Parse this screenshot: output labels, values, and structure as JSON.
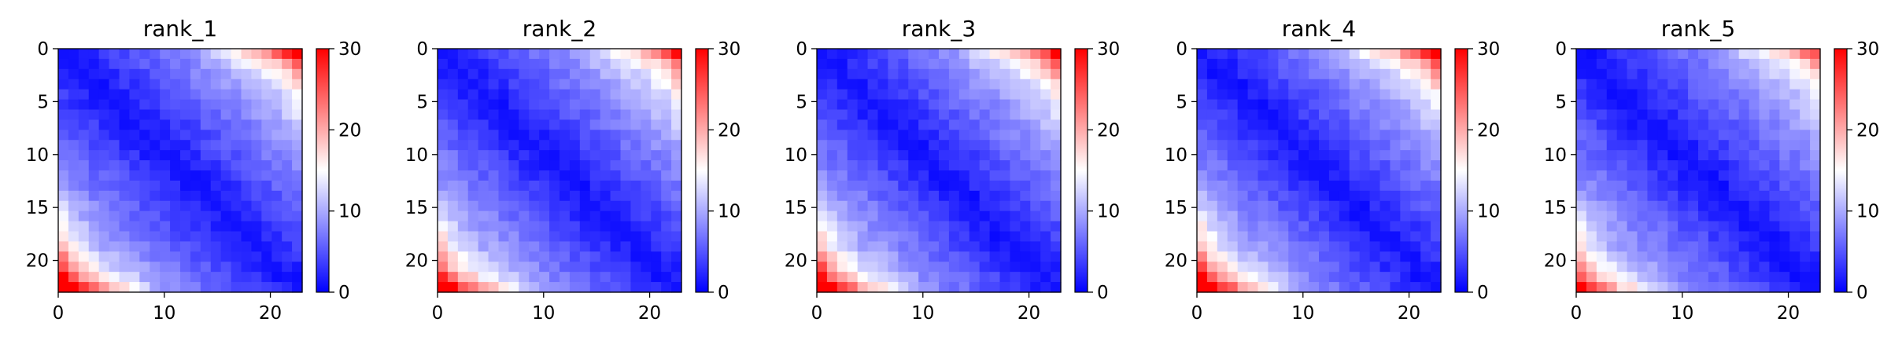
{
  "chart_data": [
    {
      "type": "heatmap",
      "title": "rank_1",
      "size": 24,
      "colormap": "bwr",
      "color_range": [
        0,
        30
      ],
      "colorbar_ticks": [
        0,
        10,
        20,
        30
      ],
      "x_ticks": [
        0,
        10,
        20
      ],
      "y_ticks": [
        0,
        5,
        10,
        15,
        20
      ],
      "xlim": [
        0,
        23
      ],
      "ylim": [
        23,
        0
      ],
      "diag_value": 1,
      "slope": 0.58,
      "row_seed": 11,
      "top_band_value": 24,
      "bottom_band_value": 25,
      "band_decay": 0.5
    },
    {
      "type": "heatmap",
      "title": "rank_2",
      "size": 24,
      "colormap": "bwr",
      "color_range": [
        0,
        30
      ],
      "colorbar_ticks": [
        0,
        10,
        20,
        30
      ],
      "x_ticks": [
        0,
        10,
        20
      ],
      "y_ticks": [
        0,
        5,
        10,
        15,
        20
      ],
      "xlim": [
        0,
        23
      ],
      "ylim": [
        23,
        0
      ],
      "diag_value": 1,
      "slope": 0.6,
      "row_seed": 23,
      "top_band_value": 21,
      "bottom_band_value": 24,
      "band_decay": 0.48
    },
    {
      "type": "heatmap",
      "title": "rank_3",
      "size": 24,
      "colormap": "bwr",
      "color_range": [
        0,
        30
      ],
      "colorbar_ticks": [
        0,
        10,
        20,
        30
      ],
      "x_ticks": [
        0,
        10,
        20
      ],
      "y_ticks": [
        0,
        5,
        10,
        15,
        20
      ],
      "xlim": [
        0,
        23
      ],
      "ylim": [
        23,
        0
      ],
      "diag_value": 1,
      "slope": 0.6,
      "row_seed": 37,
      "top_band_value": 22,
      "bottom_band_value": 25,
      "band_decay": 0.5
    },
    {
      "type": "heatmap",
      "title": "rank_4",
      "size": 24,
      "colormap": "bwr",
      "color_range": [
        0,
        30
      ],
      "colorbar_ticks": [
        0,
        10,
        20,
        30
      ],
      "x_ticks": [
        0,
        10,
        20
      ],
      "y_ticks": [
        0,
        5,
        10,
        15,
        20
      ],
      "xlim": [
        0,
        23
      ],
      "ylim": [
        23,
        0
      ],
      "diag_value": 1,
      "slope": 0.6,
      "row_seed": 41,
      "top_band_value": 23,
      "bottom_band_value": 25,
      "band_decay": 0.5
    },
    {
      "type": "heatmap",
      "title": "rank_5",
      "size": 24,
      "colormap": "bwr",
      "color_range": [
        0,
        30
      ],
      "colorbar_ticks": [
        0,
        10,
        20,
        30
      ],
      "x_ticks": [
        0,
        10,
        20
      ],
      "y_ticks": [
        0,
        5,
        10,
        15,
        20
      ],
      "xlim": [
        0,
        23
      ],
      "ylim": [
        23,
        0
      ],
      "diag_value": 1,
      "slope": 0.56,
      "row_seed": 53,
      "top_band_value": 20,
      "bottom_band_value": 22,
      "band_decay": 0.48
    }
  ]
}
